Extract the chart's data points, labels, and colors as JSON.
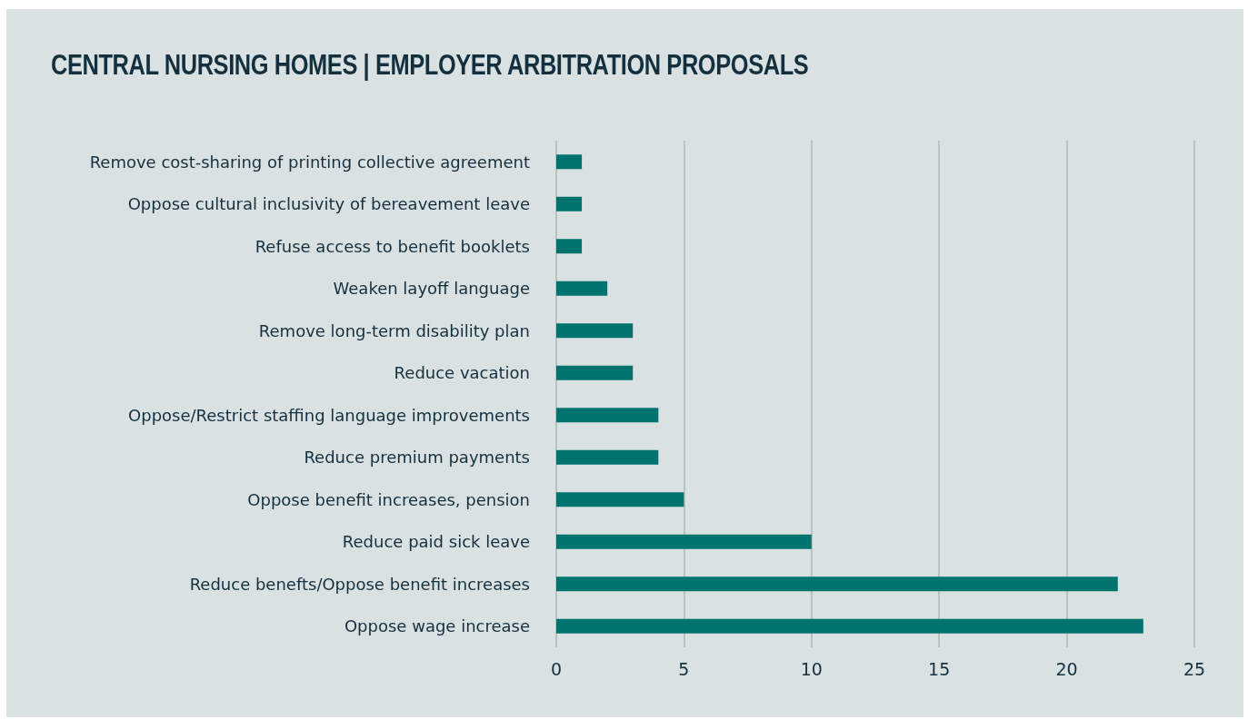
{
  "chart_data": {
    "type": "bar",
    "orientation": "horizontal",
    "title": "CENTRAL NURSING HOMES | EMPLOYER ARBITRATION PROPOSALS",
    "categories": [
      "Remove cost-sharing of printing collective agreement",
      "Oppose cultural inclusivity of bereavement leave",
      "Refuse access to benefit booklets",
      "Weaken layoff language",
      "Remove long-term disability plan",
      "Reduce vacation",
      "Oppose/Restrict staffing language improvements",
      "Reduce premium payments",
      "Oppose benefit increases, pension",
      "Reduce paid sick leave",
      "Reduce benefts/Oppose benefit increases",
      "Oppose wage increase"
    ],
    "values": [
      1,
      1,
      1,
      2,
      3,
      3,
      4,
      4,
      5,
      10,
      22,
      23
    ],
    "color": "#00736e",
    "xlim": [
      0,
      25
    ],
    "xticks": [
      0,
      5,
      10,
      15,
      20,
      25
    ],
    "grid": "x"
  }
}
